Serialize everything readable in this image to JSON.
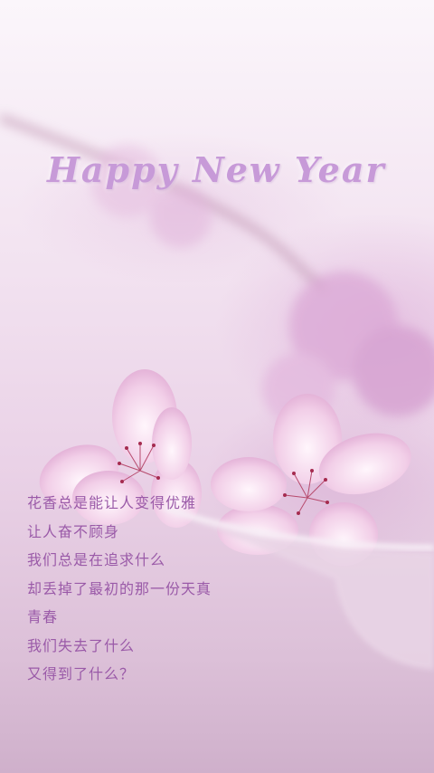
{
  "title": "Happy New Year",
  "poem": [
    "花香总是能让人变得优雅",
    "让人奋不顾身",
    "我们总是在追求什么",
    "却丢掉了最初的那一份天真",
    "青春",
    "我们失去了什么",
    "又得到了什么？"
  ],
  "colors": {
    "title": "#c79ad8",
    "poem_text": "#9a5aa8",
    "petal": "#f2cfe8"
  }
}
